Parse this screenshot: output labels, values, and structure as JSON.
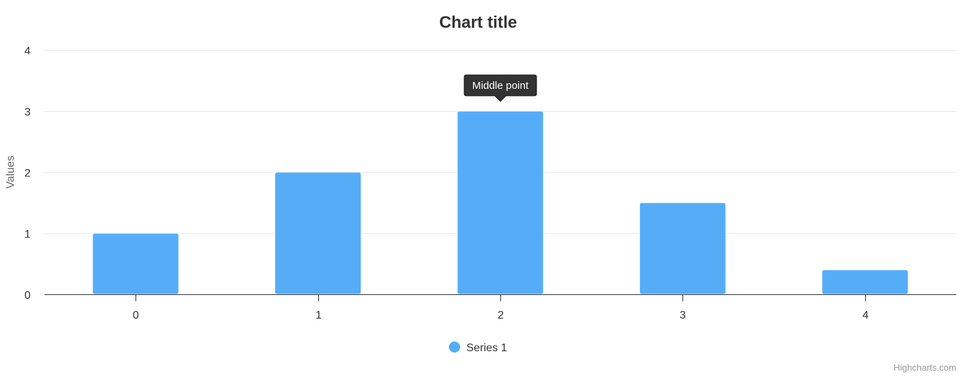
{
  "chart_data": {
    "type": "bar",
    "title": "Chart title",
    "xlabel": "",
    "ylabel": "Values",
    "categories": [
      "0",
      "1",
      "2",
      "3",
      "4"
    ],
    "series": [
      {
        "name": "Series 1",
        "values": [
          1,
          2,
          3,
          1.5,
          0.4
        ],
        "color": "#55adf8"
      }
    ],
    "ylim": [
      0,
      4
    ],
    "yticks": [
      0,
      1,
      2,
      3,
      4
    ],
    "grid": true,
    "legend_position": "bottom-center",
    "annotations": [
      {
        "category_index": 2,
        "text": "Middle point"
      }
    ]
  },
  "credits": "Highcharts.com",
  "colors": {
    "tooltip_bg": "#333333",
    "grid": "#e6e6e6",
    "axis": "#333333"
  }
}
